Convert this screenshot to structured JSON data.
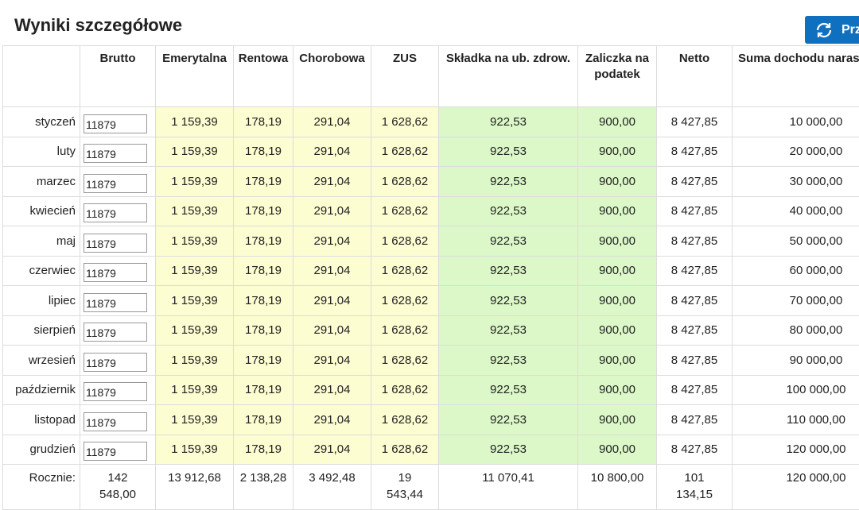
{
  "header": {
    "title": "Wyniki szczegółowe",
    "button": "Prz"
  },
  "table": {
    "columns": [
      "",
      "Brutto",
      "Emerytalna",
      "Rentowa",
      "Chorobowa",
      "ZUS",
      "Składka na ub. zdrow.",
      "Zaliczka na podatek",
      "Netto",
      "Suma dochodu narastająco"
    ],
    "rows": [
      [
        "styczeń",
        "11879",
        "1 159,39",
        "178,19",
        "291,04",
        "1 628,62",
        "922,53",
        "900,00",
        "8 427,85",
        "10 000,00"
      ],
      [
        "luty",
        "11879",
        "1 159,39",
        "178,19",
        "291,04",
        "1 628,62",
        "922,53",
        "900,00",
        "8 427,85",
        "20 000,00"
      ],
      [
        "marzec",
        "11879",
        "1 159,39",
        "178,19",
        "291,04",
        "1 628,62",
        "922,53",
        "900,00",
        "8 427,85",
        "30 000,00"
      ],
      [
        "kwiecień",
        "11879",
        "1 159,39",
        "178,19",
        "291,04",
        "1 628,62",
        "922,53",
        "900,00",
        "8 427,85",
        "40 000,00"
      ],
      [
        "maj",
        "11879",
        "1 159,39",
        "178,19",
        "291,04",
        "1 628,62",
        "922,53",
        "900,00",
        "8 427,85",
        "50 000,00"
      ],
      [
        "czerwiec",
        "11879",
        "1 159,39",
        "178,19",
        "291,04",
        "1 628,62",
        "922,53",
        "900,00",
        "8 427,85",
        "60 000,00"
      ],
      [
        "lipiec",
        "11879",
        "1 159,39",
        "178,19",
        "291,04",
        "1 628,62",
        "922,53",
        "900,00",
        "8 427,85",
        "70 000,00"
      ],
      [
        "sierpień",
        "11879",
        "1 159,39",
        "178,19",
        "291,04",
        "1 628,62",
        "922,53",
        "900,00",
        "8 427,85",
        "80 000,00"
      ],
      [
        "wrzesień",
        "11879",
        "1 159,39",
        "178,19",
        "291,04",
        "1 628,62",
        "922,53",
        "900,00",
        "8 427,85",
        "90 000,00"
      ],
      [
        "październik",
        "11879",
        "1 159,39",
        "178,19",
        "291,04",
        "1 628,62",
        "922,53",
        "900,00",
        "8 427,85",
        "100 000,00"
      ],
      [
        "listopad",
        "11879",
        "1 159,39",
        "178,19",
        "291,04",
        "1 628,62",
        "922,53",
        "900,00",
        "8 427,85",
        "110 000,00"
      ],
      [
        "grudzień",
        "11879",
        "1 159,39",
        "178,19",
        "291,04",
        "1 628,62",
        "922,53",
        "900,00",
        "8 427,85",
        "120 000,00"
      ]
    ],
    "totals": [
      "Rocznie:",
      "142 548,00",
      "13 912,68",
      "2 138,28",
      "3 492,48",
      "19 543,44",
      "11 070,41",
      "10 800,00",
      "101 134,15",
      "120 000,00"
    ]
  }
}
